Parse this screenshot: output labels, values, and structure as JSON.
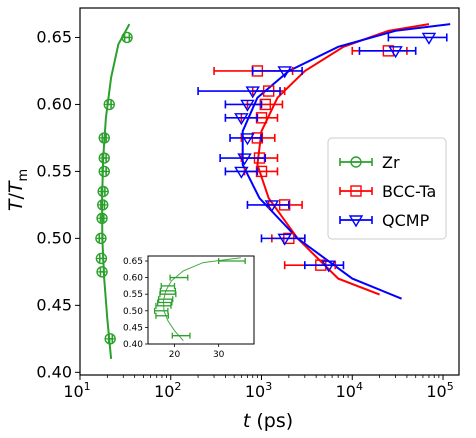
{
  "chart_data": [
    {
      "type": "scatter",
      "id": "main",
      "xlabel": "t (ps)",
      "ylabel": "T/T_m",
      "xscale": "log",
      "xlim": [
        10,
        150000
      ],
      "ylim": [
        0.398,
        0.672
      ],
      "xticks": [
        {
          "value": 10,
          "base": "10",
          "exp": "1"
        },
        {
          "value": 100,
          "base": "10",
          "exp": "2"
        },
        {
          "value": 1000,
          "base": "10",
          "exp": "3"
        },
        {
          "value": 10000,
          "base": "10",
          "exp": "4"
        },
        {
          "value": 100000,
          "base": "10",
          "exp": "5"
        }
      ],
      "yticks": [
        {
          "value": 0.4,
          "label": "0.40"
        },
        {
          "value": 0.45,
          "label": "0.45"
        },
        {
          "value": 0.5,
          "label": "0.50"
        },
        {
          "value": 0.55,
          "label": "0.55"
        },
        {
          "value": 0.6,
          "label": "0.60"
        },
        {
          "value": 0.65,
          "label": "0.65"
        }
      ],
      "legend_position": "center-right",
      "series": [
        {
          "name": "Zr",
          "color": "#2ca02c",
          "marker": "circle",
          "points": [
            {
              "y": 0.425,
              "x": 21.5,
              "xerr": [
                20.7,
                22.7
              ]
            },
            {
              "y": 0.475,
              "x": 17.5,
              "xerr": [
                16.8,
                18.3
              ]
            },
            {
              "y": 0.485,
              "x": 17.2,
              "xerr": [
                16.5,
                18.0
              ]
            },
            {
              "y": 0.5,
              "x": 17.0,
              "xerr": [
                16.3,
                17.8
              ]
            },
            {
              "y": 0.515,
              "x": 17.5,
              "xerr": [
                16.8,
                18.3
              ]
            },
            {
              "y": 0.525,
              "x": 17.8,
              "xerr": [
                17.0,
                18.6
              ]
            },
            {
              "y": 0.535,
              "x": 18.0,
              "xerr": [
                17.2,
                18.8
              ]
            },
            {
              "y": 0.55,
              "x": 18.5,
              "xerr": [
                17.6,
                19.4
              ]
            },
            {
              "y": 0.56,
              "x": 18.5,
              "xerr": [
                17.6,
                19.4
              ]
            },
            {
              "y": 0.575,
              "x": 18.5,
              "xerr": [
                17.6,
                19.4
              ]
            },
            {
              "y": 0.6,
              "x": 21.0,
              "xerr": [
                20.0,
                22.0
              ]
            },
            {
              "y": 0.65,
              "x": 33.0,
              "xerr": [
                31.0,
                35.0
              ]
            }
          ],
          "fit": [
            {
              "x": 22.0,
              "y": 0.41
            },
            {
              "x": 20.0,
              "y": 0.44
            },
            {
              "x": 18.5,
              "y": 0.47
            },
            {
              "x": 17.6,
              "y": 0.5
            },
            {
              "x": 17.5,
              "y": 0.53
            },
            {
              "x": 18.0,
              "y": 0.56
            },
            {
              "x": 19.3,
              "y": 0.59
            },
            {
              "x": 22.0,
              "y": 0.62
            },
            {
              "x": 26.5,
              "y": 0.645
            },
            {
              "x": 35.0,
              "y": 0.66
            }
          ]
        },
        {
          "name": "BCC-Ta",
          "color": "#ff0000",
          "marker": "square",
          "points": [
            {
              "y": 0.48,
              "x": 4500,
              "xerr": [
                1800,
                6500
              ]
            },
            {
              "y": 0.5,
              "x": 2000,
              "xerr": [
                1300,
                3000
              ]
            },
            {
              "y": 0.525,
              "x": 1800,
              "xerr": [
                1200,
                2800
              ]
            },
            {
              "y": 0.55,
              "x": 1000,
              "xerr": [
                650,
                1500
              ]
            },
            {
              "y": 0.56,
              "x": 950,
              "xerr": [
                600,
                1500
              ]
            },
            {
              "y": 0.575,
              "x": 900,
              "xerr": [
                600,
                1400
              ]
            },
            {
              "y": 0.59,
              "x": 1000,
              "xerr": [
                600,
                1500
              ]
            },
            {
              "y": 0.6,
              "x": 1100,
              "xerr": [
                700,
                1700
              ]
            },
            {
              "y": 0.61,
              "x": 1200,
              "xerr": [
                800,
                1800
              ]
            },
            {
              "y": 0.625,
              "x": 900,
              "xerr": [
                300,
                2200
              ]
            },
            {
              "y": 0.64,
              "x": 25000,
              "xerr": [
                10000,
                40000
              ]
            }
          ],
          "fit": [
            {
              "x": 20000,
              "y": 0.458
            },
            {
              "x": 7000,
              "y": 0.47
            },
            {
              "x": 2500,
              "y": 0.5
            },
            {
              "x": 1200,
              "y": 0.53
            },
            {
              "x": 900,
              "y": 0.555
            },
            {
              "x": 1000,
              "y": 0.58
            },
            {
              "x": 1500,
              "y": 0.605
            },
            {
              "x": 3000,
              "y": 0.625
            },
            {
              "x": 8000,
              "y": 0.643
            },
            {
              "x": 25000,
              "y": 0.655
            },
            {
              "x": 70000,
              "y": 0.66
            }
          ]
        },
        {
          "name": "QCMP",
          "color": "#0000ff",
          "marker": "triangle-down",
          "points": [
            {
              "y": 0.48,
              "x": 5500,
              "xerr": [
                3000,
                8000
              ]
            },
            {
              "y": 0.5,
              "x": 1800,
              "xerr": [
                1000,
                3000
              ]
            },
            {
              "y": 0.525,
              "x": 1300,
              "xerr": [
                700,
                2000
              ]
            },
            {
              "y": 0.55,
              "x": 600,
              "xerr": [
                400,
                900
              ]
            },
            {
              "y": 0.56,
              "x": 650,
              "xerr": [
                350,
                1100
              ]
            },
            {
              "y": 0.575,
              "x": 700,
              "xerr": [
                450,
                1000
              ]
            },
            {
              "y": 0.59,
              "x": 600,
              "xerr": [
                400,
                900
              ]
            },
            {
              "y": 0.6,
              "x": 700,
              "xerr": [
                400,
                1000
              ]
            },
            {
              "y": 0.61,
              "x": 800,
              "xerr": [
                200,
                1600
              ]
            },
            {
              "y": 0.625,
              "x": 1800,
              "xerr": [
                800,
                2800
              ]
            },
            {
              "y": 0.64,
              "x": 30000,
              "xerr": [
                12000,
                50000
              ]
            },
            {
              "y": 0.65,
              "x": 70000,
              "xerr": [
                25000,
                110000
              ]
            }
          ],
          "fit": [
            {
              "x": 35000,
              "y": 0.455
            },
            {
              "x": 10000,
              "y": 0.47
            },
            {
              "x": 2500,
              "y": 0.5
            },
            {
              "x": 950,
              "y": 0.53
            },
            {
              "x": 620,
              "y": 0.555
            },
            {
              "x": 620,
              "y": 0.58
            },
            {
              "x": 900,
              "y": 0.605
            },
            {
              "x": 2000,
              "y": 0.625
            },
            {
              "x": 7000,
              "y": 0.643
            },
            {
              "x": 30000,
              "y": 0.655
            },
            {
              "x": 120000,
              "y": 0.66
            }
          ]
        }
      ]
    },
    {
      "type": "scatter",
      "id": "inset",
      "xscale": "linear",
      "xlim": [
        14,
        38
      ],
      "ylim": [
        0.4,
        0.665
      ],
      "xticks": [
        {
          "value": 20,
          "label": "20"
        },
        {
          "value": 30,
          "label": "30"
        }
      ],
      "yticks": [
        {
          "value": 0.4,
          "label": "0.40"
        },
        {
          "value": 0.45,
          "label": "0.45"
        },
        {
          "value": 0.5,
          "label": "0.50"
        },
        {
          "value": 0.55,
          "label": "0.55"
        },
        {
          "value": 0.6,
          "label": "0.60"
        },
        {
          "value": 0.65,
          "label": "0.65"
        }
      ],
      "series": [
        {
          "name": "Zr",
          "color": "#2ca02c",
          "points": [
            {
              "y": 0.425,
              "x": 21.5,
              "xerr": [
                19.5,
                23.5
              ]
            },
            {
              "y": 0.485,
              "x": 17.2,
              "xerr": [
                15.8,
                18.6
              ]
            },
            {
              "y": 0.5,
              "x": 17.0,
              "xerr": [
                15.5,
                18.5
              ]
            },
            {
              "y": 0.515,
              "x": 17.5,
              "xerr": [
                15.8,
                19.2
              ]
            },
            {
              "y": 0.525,
              "x": 17.8,
              "xerr": [
                16.2,
                19.4
              ]
            },
            {
              "y": 0.535,
              "x": 18.0,
              "xerr": [
                16.4,
                19.6
              ]
            },
            {
              "y": 0.55,
              "x": 18.5,
              "xerr": [
                16.7,
                20.3
              ]
            },
            {
              "y": 0.56,
              "x": 18.5,
              "xerr": [
                16.8,
                20.2
              ]
            },
            {
              "y": 0.575,
              "x": 18.5,
              "xerr": [
                17.0,
                20.0
              ]
            },
            {
              "y": 0.6,
              "x": 21.0,
              "xerr": [
                19.0,
                23.0
              ]
            },
            {
              "y": 0.65,
              "x": 33.0,
              "xerr": [
                30.0,
                36.0
              ]
            }
          ],
          "fit": [
            {
              "x": 22.0,
              "y": 0.41
            },
            {
              "x": 20.0,
              "y": 0.44
            },
            {
              "x": 18.5,
              "y": 0.47
            },
            {
              "x": 17.6,
              "y": 0.5
            },
            {
              "x": 17.5,
              "y": 0.53
            },
            {
              "x": 18.0,
              "y": 0.56
            },
            {
              "x": 19.3,
              "y": 0.59
            },
            {
              "x": 22.0,
              "y": 0.62
            },
            {
              "x": 26.5,
              "y": 0.645
            },
            {
              "x": 35.0,
              "y": 0.66
            }
          ]
        }
      ]
    }
  ]
}
